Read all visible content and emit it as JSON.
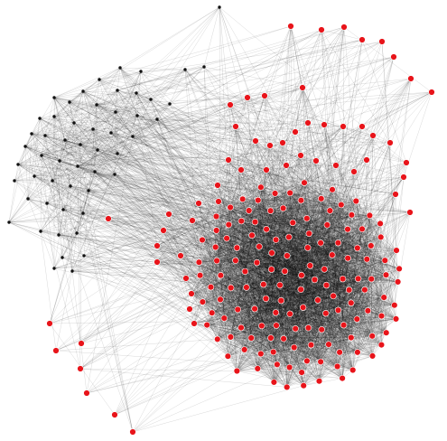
{
  "graph": {
    "description_type": "network-graph",
    "colors": {
      "background": "#ffffff",
      "edge": "#000000",
      "node_red": "#e8141a",
      "node_black": "#111111",
      "node_stroke": "#ffffff"
    }
  }
}
